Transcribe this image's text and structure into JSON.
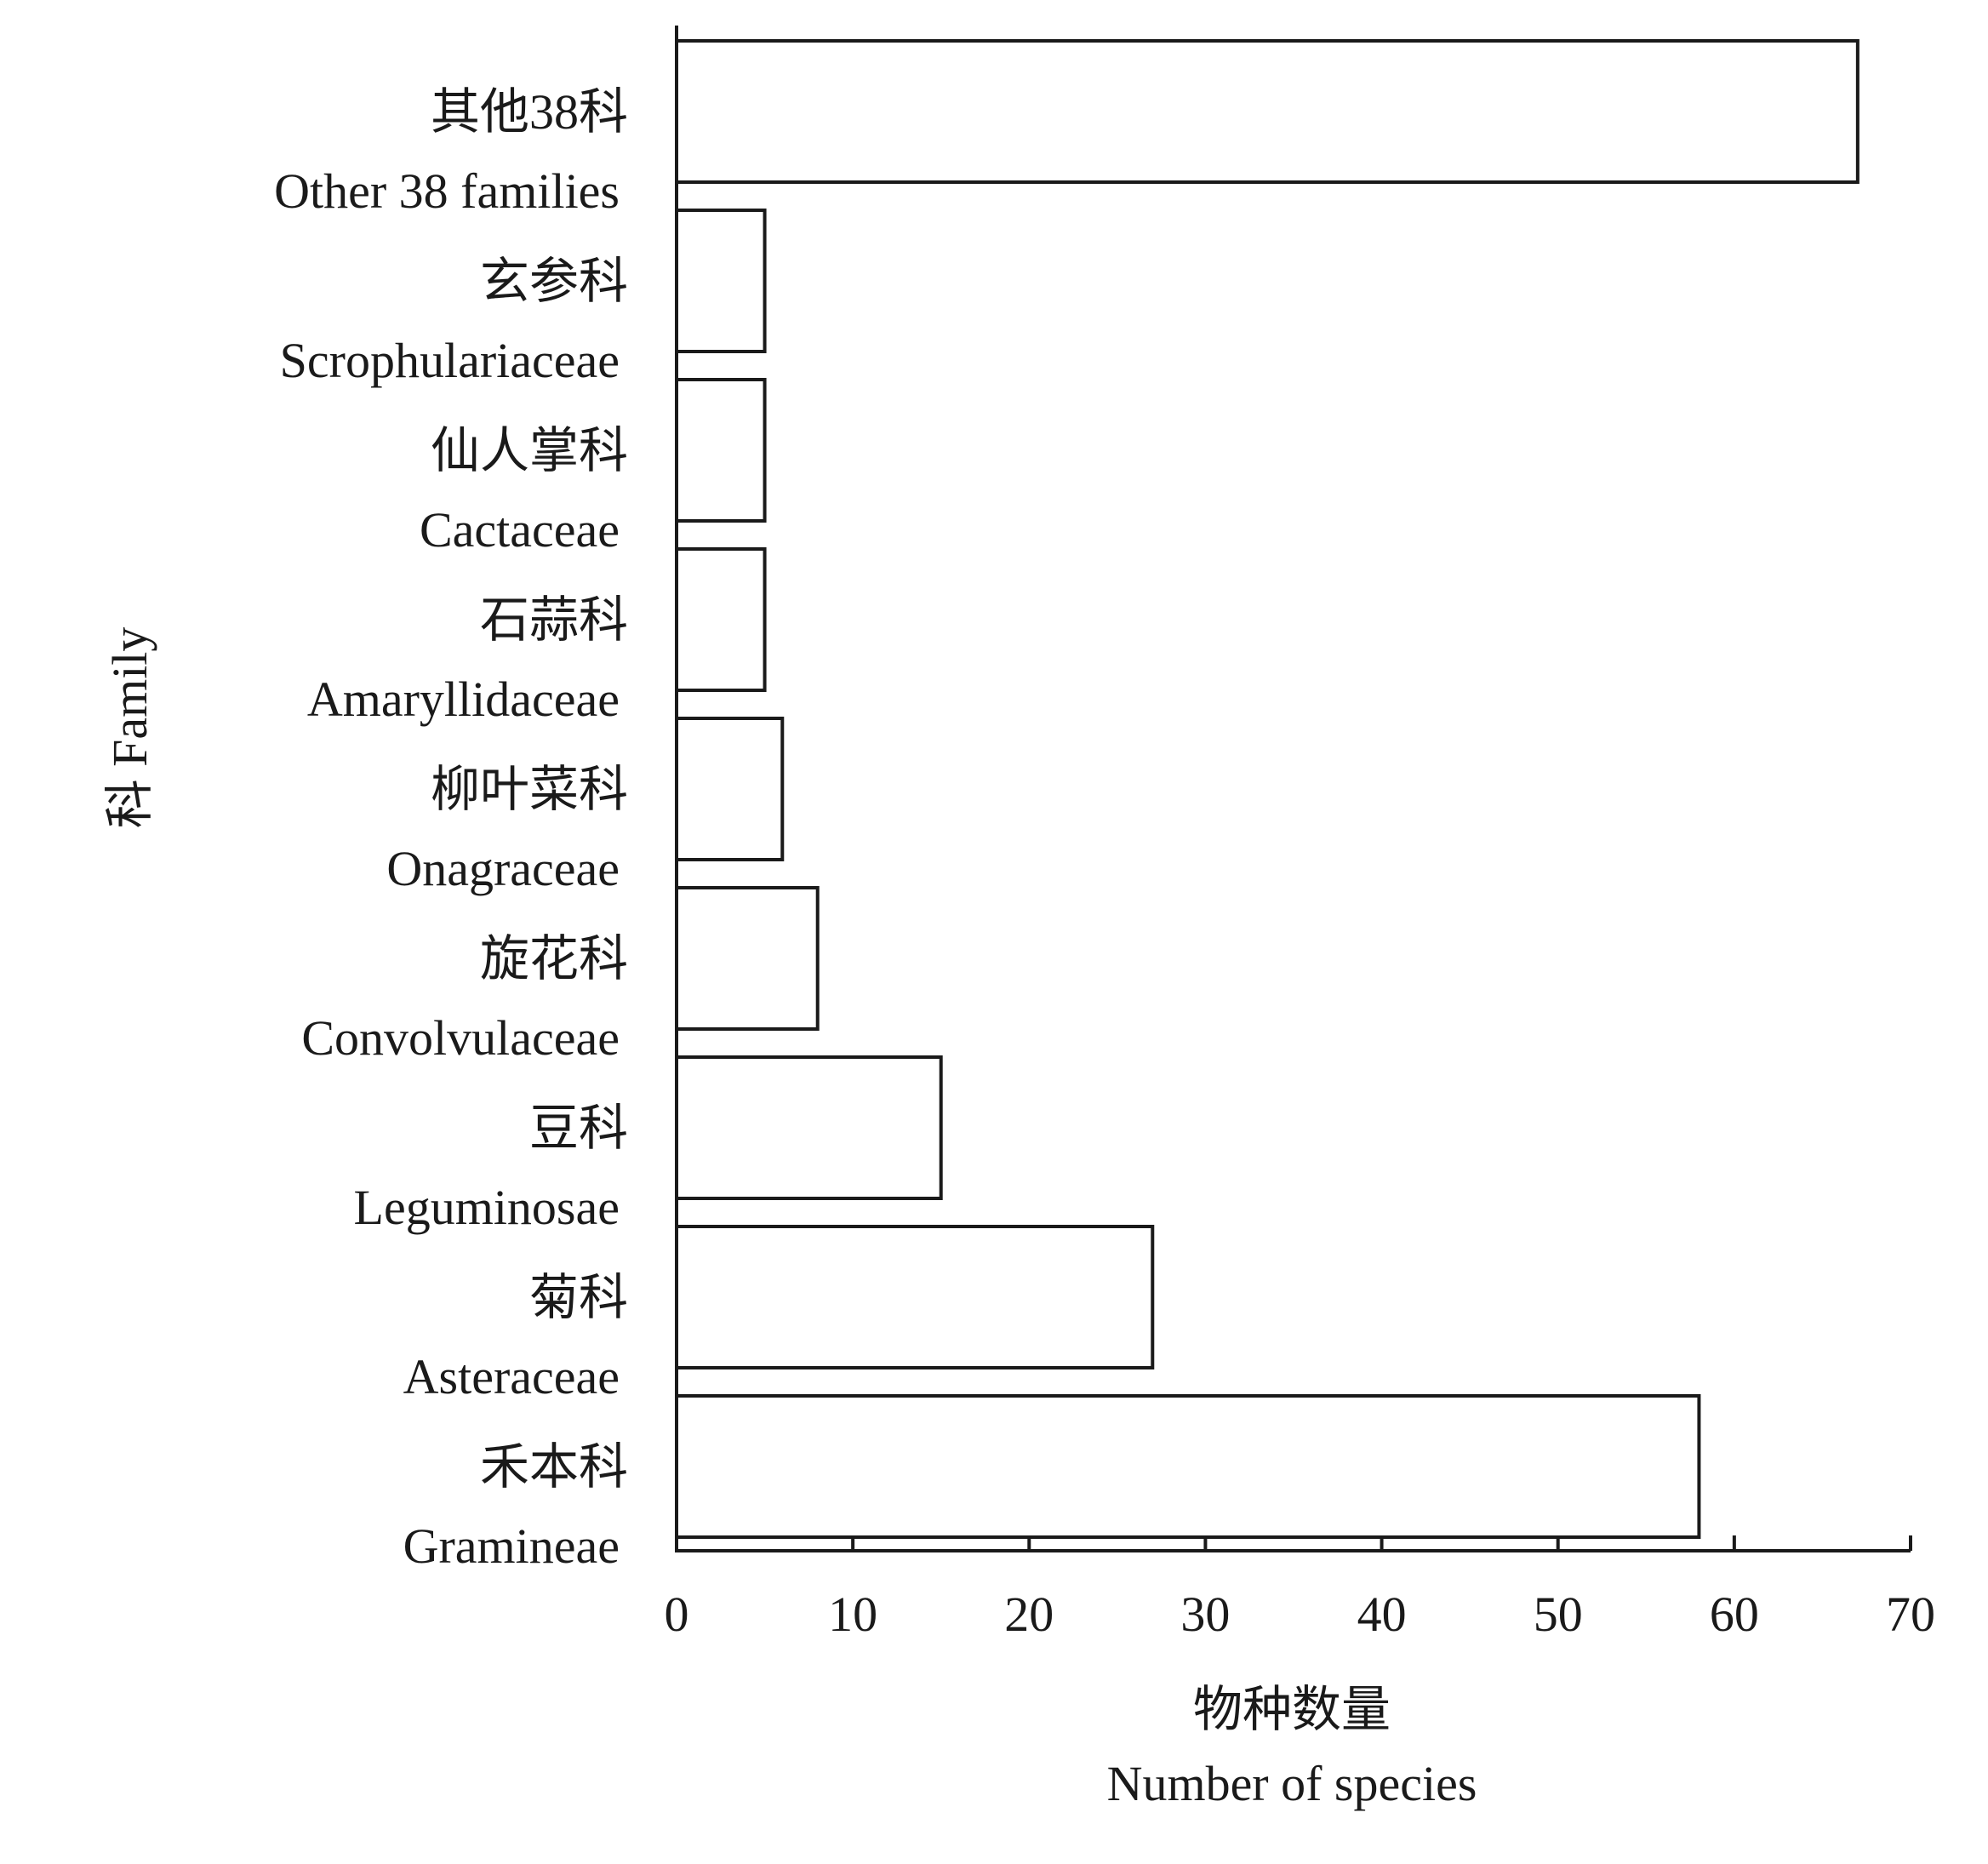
{
  "chart_data": {
    "type": "bar",
    "orientation": "horizontal",
    "categories": [
      {
        "zh": "其他38科",
        "en": "Other 38 families"
      },
      {
        "zh": "玄参科",
        "en": "Scrophulariaceae"
      },
      {
        "zh": "仙人掌科",
        "en": "Cactaceae"
      },
      {
        "zh": "石蒜科",
        "en": "Amaryllidaceae"
      },
      {
        "zh": "柳叶菜科",
        "en": "Onagraceae"
      },
      {
        "zh": "旋花科",
        "en": "Convolvulaceae"
      },
      {
        "zh": "豆科",
        "en": "Leguminosae"
      },
      {
        "zh": "菊科",
        "en": "Asteraceae"
      },
      {
        "zh": "禾本科",
        "en": "Gramineae"
      }
    ],
    "values": [
      67,
      5,
      5,
      5,
      6,
      8,
      15,
      27,
      58
    ],
    "xlabel": {
      "zh": "物种数量",
      "en": "Number of species"
    },
    "ylabel": "科 Family",
    "xlim": [
      0,
      70
    ],
    "xticks": [
      "0",
      "10",
      "20",
      "30",
      "40",
      "50",
      "60",
      "70"
    ],
    "grid": false,
    "bar_fill": "#ffffff",
    "bar_stroke": "#1a1a1a"
  }
}
